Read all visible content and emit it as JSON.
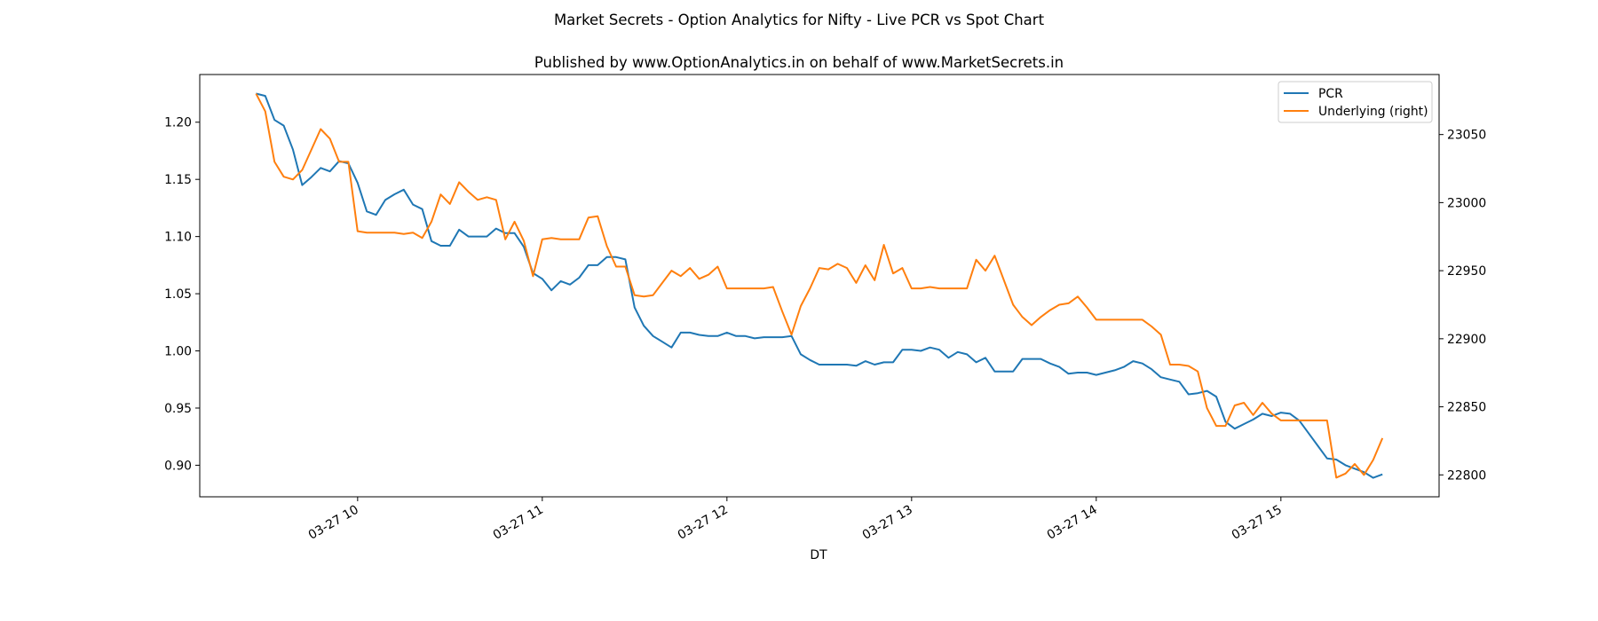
{
  "chart_data": {
    "type": "line",
    "suptitle": "Market Secrets - Option Analytics for Nifty - Live PCR vs Spot Chart",
    "title": "Published by www.OptionAnalytics.in on behalf of www.MarketSecrets.in",
    "xlabel": "DT",
    "ylabel": "",
    "ylabel_right": "",
    "date": "03-27",
    "x_start": "09:27",
    "x_step_minutes": 3,
    "xlim": [
      "09:08:42",
      "15:51:24"
    ],
    "ylim": [
      0.8724,
      1.2417
    ],
    "ylim_right": [
      22783.9,
      23094.1
    ],
    "x_ticks": [
      "10:00",
      "11:00",
      "12:00",
      "13:00",
      "14:00",
      "15:00"
    ],
    "x_tick_labels": [
      "03-27 10",
      "03-27 11",
      "03-27 12",
      "03-27 13",
      "03-27 14",
      "03-27 15"
    ],
    "y_ticks": [
      0.9,
      0.95,
      1.0,
      1.05,
      1.1,
      1.15,
      1.2
    ],
    "y_tick_labels": [
      "0.90",
      "0.95",
      "1.00",
      "1.05",
      "1.10",
      "1.15",
      "1.20"
    ],
    "y_ticks_right": [
      22800,
      22850,
      22900,
      22950,
      23000,
      23050
    ],
    "y_tick_labels_right": [
      "22800",
      "22850",
      "22900",
      "22950",
      "23000",
      "23050"
    ],
    "grid": false,
    "legend_position": "top-right",
    "series": [
      {
        "name": "PCR",
        "axis": "left",
        "color": "#1f77b4",
        "values": [
          1.225,
          1.223,
          1.202,
          1.197,
          1.176,
          1.145,
          1.152,
          1.16,
          1.157,
          1.166,
          1.164,
          1.147,
          1.122,
          1.119,
          1.132,
          1.137,
          1.141,
          1.128,
          1.124,
          1.096,
          1.092,
          1.092,
          1.106,
          1.1,
          1.1,
          1.1,
          1.107,
          1.103,
          1.103,
          1.091,
          1.068,
          1.063,
          1.053,
          1.061,
          1.058,
          1.064,
          1.075,
          1.075,
          1.082,
          1.082,
          1.08,
          1.038,
          1.022,
          1.013,
          1.008,
          1.003,
          1.016,
          1.016,
          1.014,
          1.013,
          1.013,
          1.016,
          1.013,
          1.013,
          1.011,
          1.012,
          1.012,
          1.012,
          1.013,
          0.997,
          0.992,
          0.988,
          0.988,
          0.988,
          0.988,
          0.987,
          0.991,
          0.988,
          0.99,
          0.99,
          1.001,
          1.001,
          1.0,
          1.003,
          1.001,
          0.994,
          0.999,
          0.997,
          0.99,
          0.994,
          0.982,
          0.982,
          0.982,
          0.993,
          0.993,
          0.993,
          0.989,
          0.986,
          0.98,
          0.981,
          0.981,
          0.979,
          0.981,
          0.983,
          0.986,
          0.991,
          0.989,
          0.984,
          0.977,
          0.975,
          0.973,
          0.962,
          0.963,
          0.965,
          0.96,
          0.938,
          0.932,
          0.936,
          0.94,
          0.945,
          0.943,
          0.946,
          0.945,
          0.939,
          0.928,
          0.917,
          0.906,
          0.905,
          0.9,
          0.897,
          0.894,
          0.889,
          0.892
        ]
      },
      {
        "name": "Underlying (right)",
        "axis": "right",
        "color": "#ff7f0e",
        "values": [
          23080,
          23067,
          23030,
          23019,
          23017,
          23024,
          23039,
          23054,
          23047,
          23030,
          23030,
          22979,
          22978,
          22978,
          22978,
          22978,
          22977,
          22978,
          22974,
          22986,
          23006,
          22999,
          23015,
          23008,
          23002,
          23004,
          23002,
          22973,
          22986,
          22972,
          22946,
          22973,
          22974,
          22973,
          22973,
          22973,
          22989,
          22990,
          22968,
          22953,
          22953,
          22932,
          22931,
          22932,
          22941,
          22950,
          22946,
          22952,
          22944,
          22947,
          22953,
          22937,
          22937,
          22937,
          22937,
          22937,
          22938,
          22920,
          22903,
          22924,
          22937,
          22952,
          22951,
          22955,
          22952,
          22941,
          22954,
          22943,
          22969,
          22948,
          22952,
          22937,
          22937,
          22938,
          22937,
          22937,
          22937,
          22937,
          22958,
          22950,
          22961,
          22943,
          22925,
          22916,
          22910,
          22916,
          22921,
          22925,
          22926,
          22931,
          22923,
          22914,
          22914,
          22914,
          22914,
          22914,
          22914,
          22909,
          22903,
          22881,
          22881,
          22880,
          22876,
          22849,
          22836,
          22836,
          22851,
          22853,
          22844,
          22853,
          22845,
          22840,
          22840,
          22840,
          22840,
          22840,
          22840,
          22798,
          22801,
          22808,
          22800,
          22811,
          22827
        ]
      }
    ]
  }
}
